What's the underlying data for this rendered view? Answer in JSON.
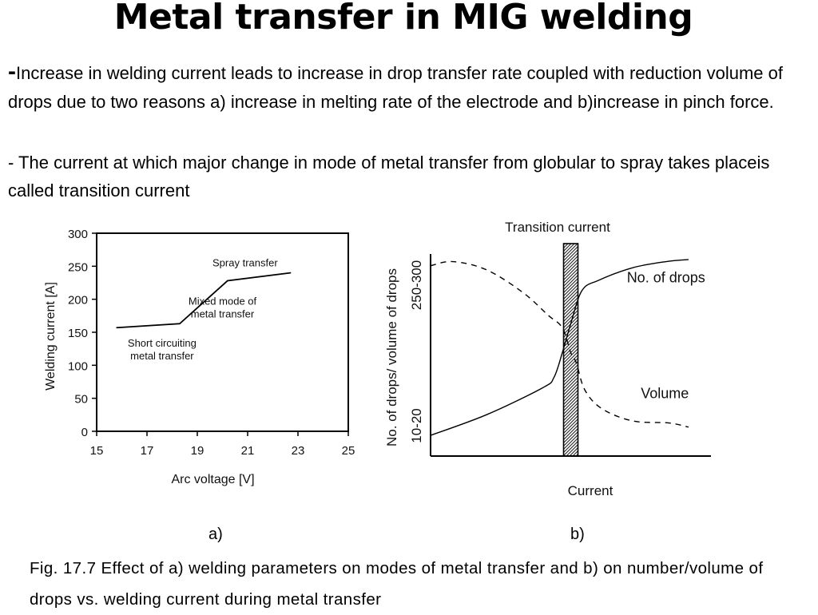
{
  "title": "Metal transfer in MIG welding",
  "paragraph1": {
    "dash": "-",
    "text": "Increase in welding current leads to increase in drop transfer rate coupled with reduction volume of drops due to two reasons  a) increase in melting rate of the electrode and b)increase in pinch force."
  },
  "paragraph2": "- The current at which major change in mode of metal transfer from globular to spray takes placeis called transition current",
  "caption": "Fig. 17.7 Effect of a) welding parameters on modes of metal transfer and b) on number/volume of drops vs. welding current during metal transfer",
  "chart_data": [
    {
      "type": "line",
      "label": "a)",
      "xlabel": "Arc voltage [V]",
      "ylabel": "Welding current [A]",
      "xlim": [
        15,
        25
      ],
      "ylim": [
        0,
        300
      ],
      "xticks": [
        15,
        17,
        19,
        21,
        23,
        25
      ],
      "yticks": [
        0,
        50,
        100,
        150,
        200,
        250,
        300
      ],
      "series": [
        {
          "name": "mode boundary",
          "x": [
            15.8,
            18.3,
            20.2,
            22.7
          ],
          "y": [
            157,
            163,
            228,
            240
          ]
        }
      ],
      "annotations": [
        {
          "lines": [
            "Spray transfer"
          ],
          "x": 20.9,
          "y": 250
        },
        {
          "lines": [
            "Mixed mode of",
            "metal transfer"
          ],
          "x": 20,
          "y": 192
        },
        {
          "lines": [
            "Short circuiting",
            "metal transfer"
          ],
          "x": 17.6,
          "y": 128
        }
      ]
    },
    {
      "type": "line",
      "label": "b)",
      "title": "Transition current",
      "xlabel": "Current",
      "ylabel": "No. of drops/ volume of drops",
      "ytick_labels": [
        "10-20",
        "250-300"
      ],
      "transition_x": 0.5,
      "series": [
        {
          "name": "No. of drops",
          "style": "solid",
          "x": [
            0.0,
            0.2,
            0.4,
            0.44,
            0.47,
            0.5,
            0.54,
            0.6,
            0.72,
            0.84,
            0.92
          ],
          "y": [
            0.1,
            0.2,
            0.33,
            0.38,
            0.5,
            0.64,
            0.8,
            0.85,
            0.91,
            0.94,
            0.95
          ]
        },
        {
          "name": "Volume",
          "style": "dashed",
          "x": [
            0.0,
            0.08,
            0.2,
            0.33,
            0.42,
            0.47,
            0.5,
            0.52,
            0.55,
            0.61,
            0.72,
            0.85,
            0.92
          ],
          "y": [
            0.92,
            0.94,
            0.9,
            0.79,
            0.68,
            0.62,
            0.5,
            0.45,
            0.32,
            0.23,
            0.17,
            0.16,
            0.14
          ]
        }
      ],
      "annotations": [
        {
          "lines": [
            "No. of drops"
          ],
          "x": 0.7,
          "y": 0.84
        },
        {
          "lines": [
            "Volume"
          ],
          "x": 0.75,
          "y": 0.28
        }
      ]
    }
  ]
}
